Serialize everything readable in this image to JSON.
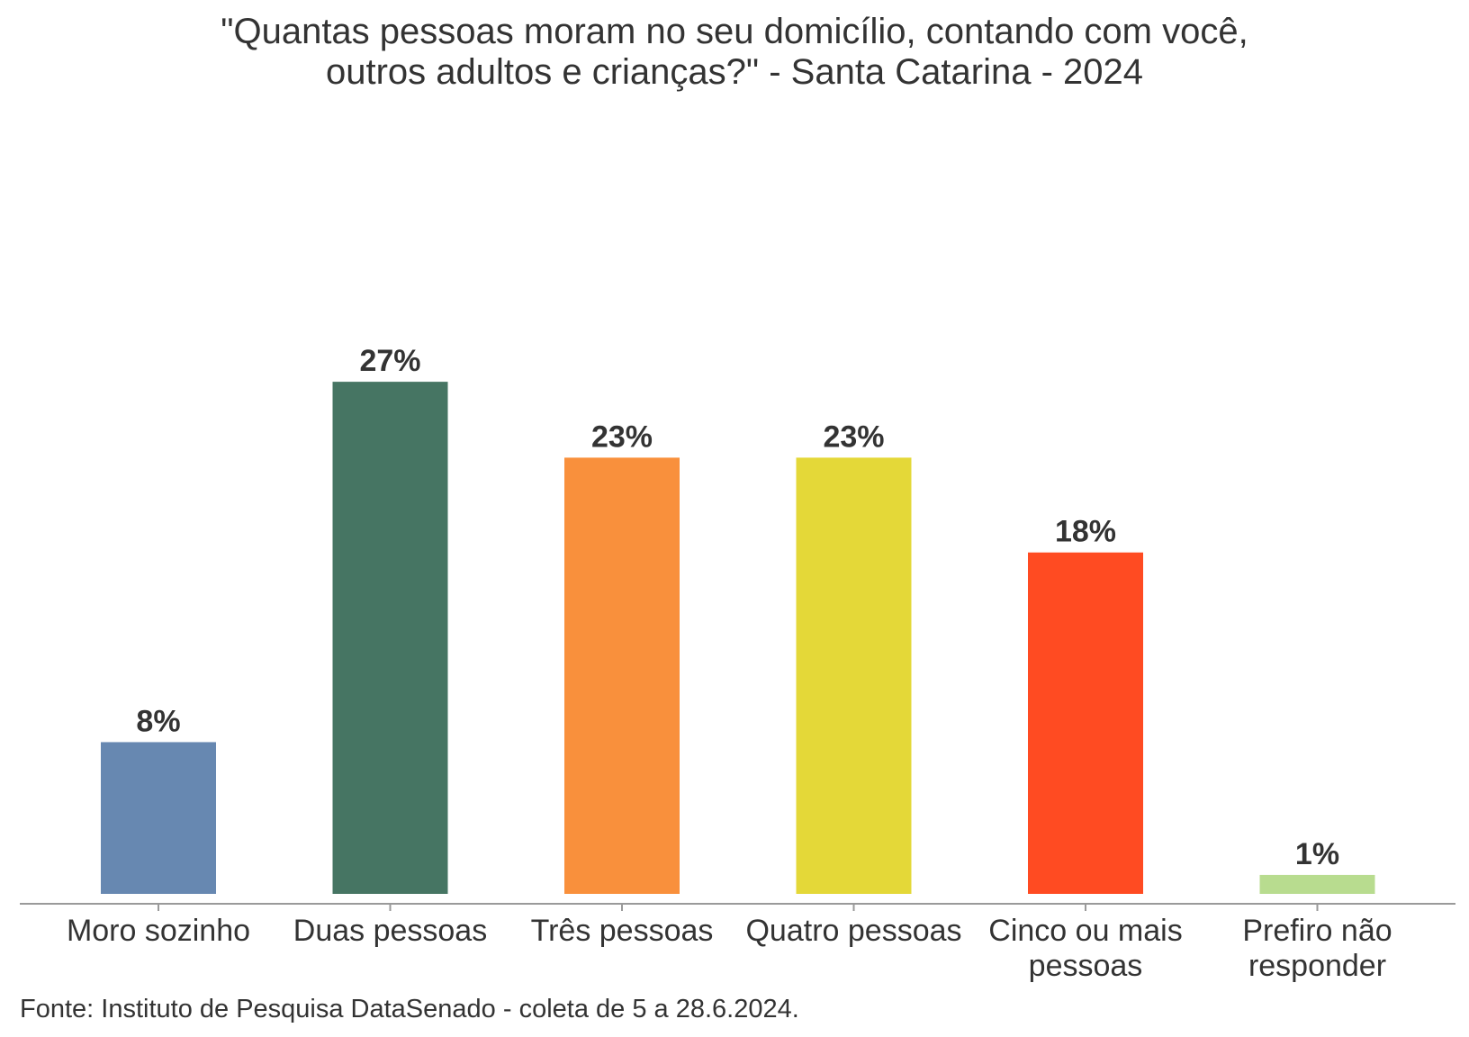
{
  "chart_data": {
    "type": "bar",
    "title_lines": [
      "\"Quantas pessoas moram no seu domicílio, contando com você,",
      "outros adultos e crianças?\" - Santa Catarina - 2024"
    ],
    "categories": [
      [
        "Moro sozinho"
      ],
      [
        "Duas pessoas"
      ],
      [
        "Três pessoas"
      ],
      [
        "Quatro pessoas"
      ],
      [
        "Cinco ou mais",
        "pessoas"
      ],
      [
        "Prefiro não",
        "responder"
      ]
    ],
    "values": [
      8,
      27,
      23,
      23,
      18,
      1
    ],
    "value_labels": [
      "8%",
      "27%",
      "23%",
      "23%",
      "18%",
      "1%"
    ],
    "colors": [
      "#6788b1",
      "#467563",
      "#f9903c",
      "#e4d838",
      "#ff4b22",
      "#b8dc8f"
    ],
    "xlabel": "",
    "ylabel": "",
    "ylim": [
      0,
      30
    ],
    "grid": false,
    "source": "Fonte: Instituto de Pesquisa DataSenado - coleta de 5 a 28.6.2024."
  }
}
